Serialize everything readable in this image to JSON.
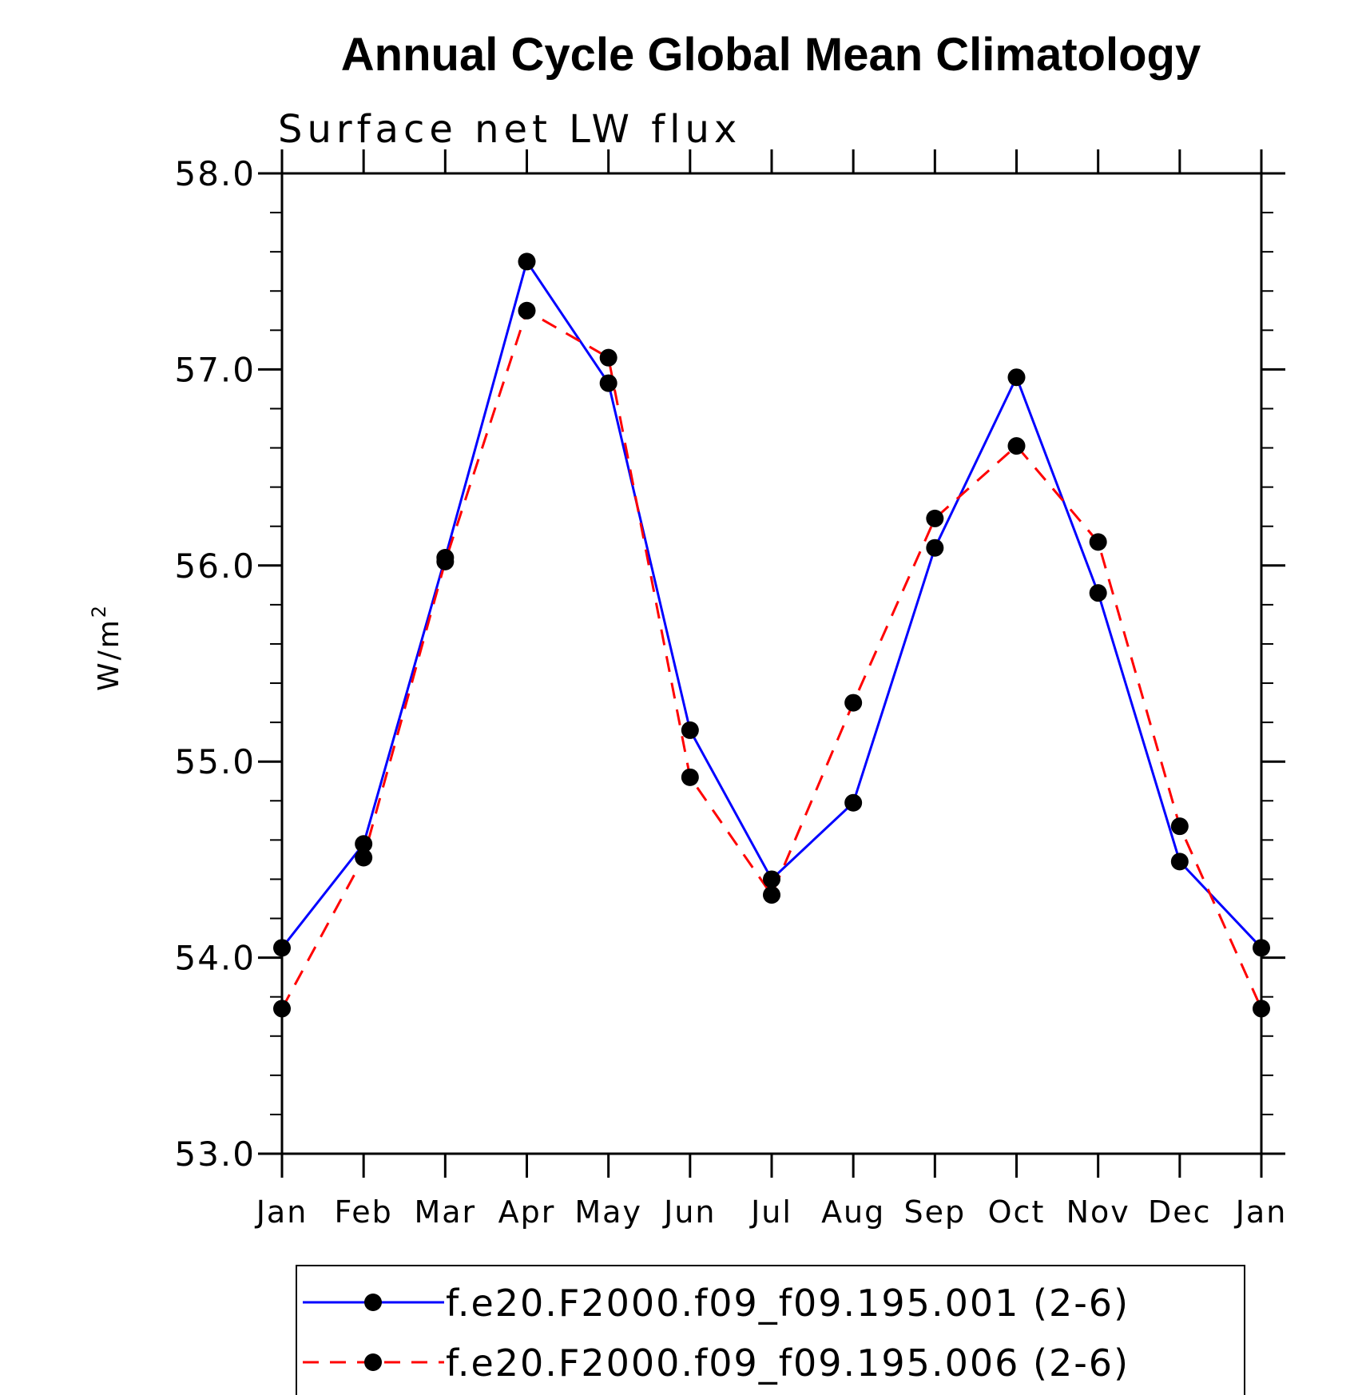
{
  "chart_data": {
    "type": "line",
    "title": "Annual Cycle Global Mean Climatology",
    "subtitle": "Surface net LW flux",
    "ylabel": "W/m",
    "ylabel_superscript": "2",
    "ylim": [
      53.0,
      58.0
    ],
    "yticks": [
      "53.0",
      "54.0",
      "55.0",
      "56.0",
      "57.0",
      "58.0"
    ],
    "categories": [
      "Jan",
      "Feb",
      "Mar",
      "Apr",
      "May",
      "Jun",
      "Jul",
      "Aug",
      "Sep",
      "Oct",
      "Nov",
      "Dec",
      "Jan"
    ],
    "grid": false,
    "legend_position": "bottom",
    "series": [
      {
        "name": "f.e20.F2000.f09_f09.195.001 (2-6)",
        "color": "#0000ff",
        "dash": "solid",
        "marker": "filled-circle",
        "values": [
          54.05,
          54.58,
          56.04,
          57.55,
          56.93,
          55.16,
          54.4,
          54.79,
          56.09,
          56.96,
          55.86,
          54.49,
          54.05
        ]
      },
      {
        "name": "f.e20.F2000.f09_f09.195.006 (2-6)",
        "color": "#ff0000",
        "dash": "dashed",
        "marker": "filled-circle",
        "values": [
          53.74,
          54.51,
          56.02,
          57.3,
          57.06,
          54.92,
          54.32,
          55.3,
          56.24,
          56.61,
          56.12,
          54.67,
          53.74
        ]
      }
    ]
  }
}
